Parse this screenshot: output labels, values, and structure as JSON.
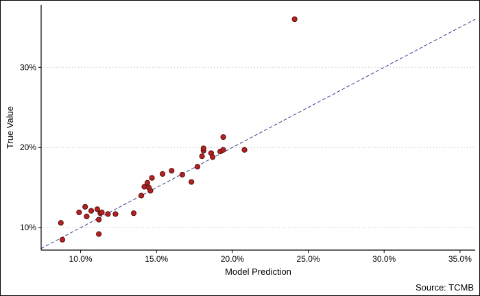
{
  "chart_data": {
    "type": "scatter",
    "title": "",
    "xlabel": "Model Prediction",
    "ylabel": "True Value",
    "caption": "Source: TCMB",
    "xlim": [
      7.4,
      36.0
    ],
    "ylim": [
      7.2,
      37.8
    ],
    "x_ticks": [
      10,
      15,
      20,
      25,
      30,
      35
    ],
    "x_tick_labels": [
      "10.0%",
      "15.0%",
      "20.0%",
      "25.0%",
      "30.0%",
      "35.0%"
    ],
    "y_ticks": [
      10,
      20,
      30
    ],
    "y_tick_labels": [
      "10%",
      "20%",
      "30%"
    ],
    "grid": {
      "horizontal_dotted": true,
      "vertical": false
    },
    "reference_line": {
      "style": "dashed",
      "slope": 1,
      "intercept": 0,
      "color": "#3a3a8a"
    },
    "point_color": "#b22222",
    "point_edge_color": "#5a0f0f",
    "points": [
      {
        "x": 8.7,
        "y": 10.6
      },
      {
        "x": 8.8,
        "y": 8.5
      },
      {
        "x": 9.9,
        "y": 11.9
      },
      {
        "x": 10.3,
        "y": 12.6
      },
      {
        "x": 10.4,
        "y": 11.4
      },
      {
        "x": 10.7,
        "y": 12.1
      },
      {
        "x": 11.1,
        "y": 12.3
      },
      {
        "x": 11.2,
        "y": 11.0
      },
      {
        "x": 11.2,
        "y": 9.2
      },
      {
        "x": 11.3,
        "y": 11.8
      },
      {
        "x": 11.4,
        "y": 11.9
      },
      {
        "x": 11.8,
        "y": 11.7
      },
      {
        "x": 12.3,
        "y": 11.7
      },
      {
        "x": 13.5,
        "y": 11.8
      },
      {
        "x": 14.0,
        "y": 14.0
      },
      {
        "x": 14.2,
        "y": 15.1
      },
      {
        "x": 14.4,
        "y": 15.6
      },
      {
        "x": 14.5,
        "y": 15.0
      },
      {
        "x": 14.6,
        "y": 14.6
      },
      {
        "x": 14.7,
        "y": 16.2
      },
      {
        "x": 15.4,
        "y": 16.7
      },
      {
        "x": 16.0,
        "y": 17.1
      },
      {
        "x": 16.7,
        "y": 16.6
      },
      {
        "x": 17.3,
        "y": 15.7
      },
      {
        "x": 17.7,
        "y": 17.6
      },
      {
        "x": 18.0,
        "y": 18.9
      },
      {
        "x": 18.1,
        "y": 19.6
      },
      {
        "x": 18.1,
        "y": 19.9
      },
      {
        "x": 18.6,
        "y": 19.3
      },
      {
        "x": 18.7,
        "y": 18.8
      },
      {
        "x": 19.2,
        "y": 19.5
      },
      {
        "x": 19.4,
        "y": 21.3
      },
      {
        "x": 19.4,
        "y": 19.7
      },
      {
        "x": 20.8,
        "y": 19.7
      },
      {
        "x": 24.1,
        "y": 36.0
      }
    ]
  }
}
